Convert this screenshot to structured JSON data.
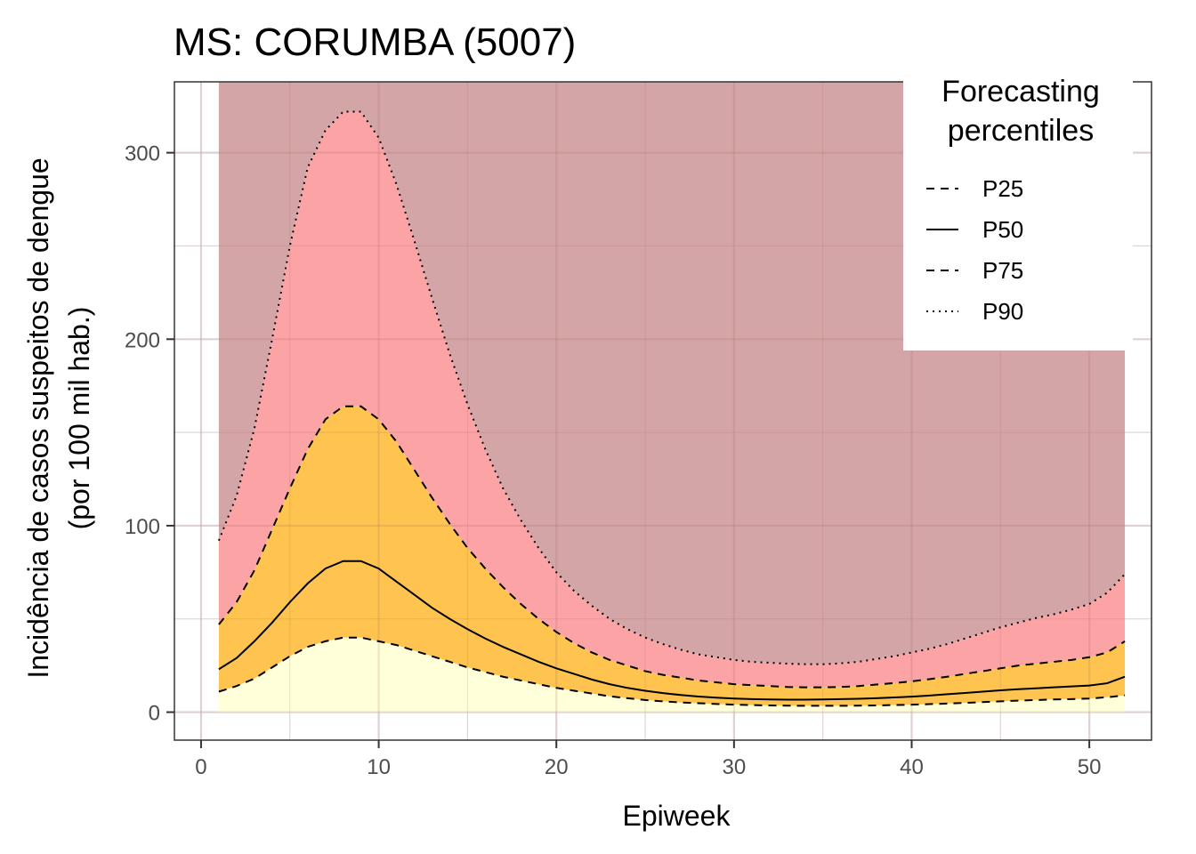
{
  "chart_data": {
    "type": "area",
    "title": "MS: CORUMBA (5007)",
    "xlabel": "Epiweek",
    "ylabel": [
      "Incidência de casos suspeitos de dengue",
      "(por 100 mil hab.)"
    ],
    "xlim": [
      -1.5,
      53.5
    ],
    "ylim": [
      -15,
      338
    ],
    "xticks": [
      0,
      10,
      20,
      30,
      40,
      50
    ],
    "yticks": [
      0,
      100,
      200,
      300
    ],
    "grid": true,
    "legend": {
      "title": [
        "Forecasting",
        "percentiles"
      ],
      "position": "top-right",
      "entries": [
        {
          "label": "P25",
          "dash": "dashed"
        },
        {
          "label": "P50",
          "dash": "solid"
        },
        {
          "label": "P75",
          "dash": "dashed"
        },
        {
          "label": "P90",
          "dash": "dotted"
        }
      ]
    },
    "bands": {
      "below_p25": "#ffffd9",
      "p25_p75": "#fec44f",
      "p75_p90": "#fca3a6",
      "above_p90": "#d4a5a6"
    },
    "band_top": 338,
    "x": [
      1,
      2,
      3,
      4,
      5,
      6,
      7,
      8,
      9,
      10,
      11,
      12,
      13,
      14,
      15,
      16,
      17,
      18,
      19,
      20,
      21,
      22,
      23,
      24,
      25,
      26,
      27,
      28,
      29,
      30,
      31,
      32,
      33,
      34,
      35,
      36,
      37,
      38,
      39,
      40,
      41,
      42,
      43,
      44,
      45,
      46,
      47,
      48,
      49,
      50,
      51,
      52
    ],
    "series": [
      {
        "name": "P25",
        "dash": "dashed",
        "values": [
          11,
          14,
          18,
          24,
          30,
          35,
          38,
          40,
          40,
          38,
          36,
          33,
          30,
          27,
          24,
          21.5,
          19,
          17,
          15,
          13,
          11.5,
          10,
          8.5,
          7.5,
          6.5,
          5.8,
          5.2,
          4.8,
          4.4,
          4,
          3.8,
          3.6,
          3.5,
          3.4,
          3.4,
          3.4,
          3.5,
          3.6,
          3.8,
          4,
          4.3,
          4.6,
          5,
          5.4,
          5.8,
          6.2,
          6.5,
          6.8,
          7,
          7.3,
          8,
          9
        ]
      },
      {
        "name": "P50",
        "dash": "solid",
        "values": [
          23,
          29,
          38,
          48,
          59,
          69,
          77,
          81,
          81,
          77,
          70,
          63,
          56,
          50,
          44.5,
          39.5,
          35,
          31,
          27,
          23.5,
          20.5,
          17.5,
          15,
          13,
          11.5,
          10.2,
          9.2,
          8.4,
          7.8,
          7.3,
          7,
          6.8,
          6.7,
          6.7,
          6.8,
          7,
          7.2,
          7.5,
          7.9,
          8.3,
          8.9,
          9.6,
          10.3,
          11,
          11.7,
          12.3,
          12.8,
          13.3,
          13.8,
          14.3,
          15.5,
          19
        ]
      },
      {
        "name": "P75",
        "dash": "dashed",
        "values": [
          47,
          59,
          76,
          98,
          120,
          141,
          157,
          164,
          164,
          157,
          145,
          130,
          115,
          101,
          88,
          77,
          67,
          58,
          50,
          43,
          37,
          32,
          28,
          25,
          22,
          20,
          18.5,
          17,
          16,
          15,
          14.5,
          14,
          13.5,
          13.3,
          13.3,
          13.5,
          14,
          14.8,
          15.6,
          16.5,
          17.7,
          19,
          20.5,
          22,
          23.5,
          25,
          26,
          27,
          28,
          29.5,
          32,
          38
        ]
      },
      {
        "name": "P90",
        "dash": "dotted",
        "values": [
          92,
          116,
          152,
          200,
          250,
          292,
          312,
          322,
          322,
          308,
          283,
          253,
          222,
          192,
          165,
          141,
          120,
          103,
          88,
          75,
          65,
          57,
          50,
          44.5,
          40,
          36.5,
          33.5,
          31,
          29.5,
          28,
          27,
          26.5,
          26,
          25.7,
          25.7,
          26.2,
          27,
          28.5,
          30,
          32,
          34,
          36.5,
          39.5,
          42.5,
          45.5,
          48,
          50.5,
          52.5,
          55,
          58,
          64,
          74
        ]
      }
    ]
  }
}
